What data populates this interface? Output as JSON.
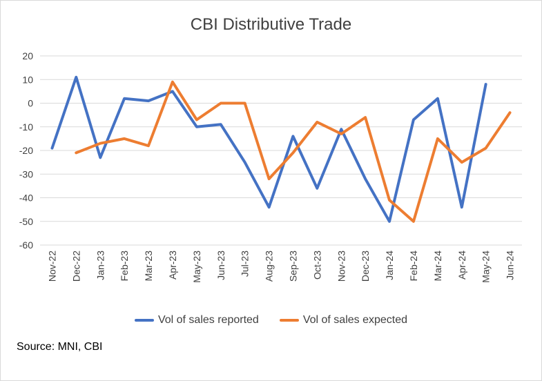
{
  "chart_data": {
    "type": "line",
    "title": "CBI Distributive Trade",
    "categories": [
      "Nov-22",
      "Dec-22",
      "Jan-23",
      "Feb-23",
      "Mar-23",
      "Apr-23",
      "May-23",
      "Jun-23",
      "Jul-23",
      "Aug-23",
      "Sep-23",
      "Oct-23",
      "Nov-23",
      "Dec-23",
      "Jan-24",
      "Feb-24",
      "Mar-24",
      "Apr-24",
      "May-24",
      "Jun-24"
    ],
    "series": [
      {
        "name": "Vol of sales reported",
        "color": "#4472c4",
        "values": [
          -19,
          11,
          -23,
          2,
          1,
          5,
          -10,
          -9,
          -25,
          -44,
          -14,
          -36,
          -11,
          -32,
          -50,
          -7,
          2,
          -44,
          8,
          null
        ]
      },
      {
        "name": "Vol of sales expected",
        "color": "#ed7d31",
        "values": [
          null,
          -21,
          -17,
          -15,
          -18,
          9,
          -7,
          0,
          0,
          -32,
          -21,
          -8,
          -13,
          -6,
          -41,
          -50,
          -15,
          -25,
          -19,
          -4
        ]
      }
    ],
    "ylim": [
      -60,
      20
    ],
    "yticks": [
      20,
      10,
      0,
      -10,
      -20,
      -30,
      -40,
      -50,
      -60
    ],
    "grid": true,
    "legend_position": "bottom",
    "xlabel": "",
    "ylabel": ""
  },
  "source": "Source: MNI, CBI"
}
